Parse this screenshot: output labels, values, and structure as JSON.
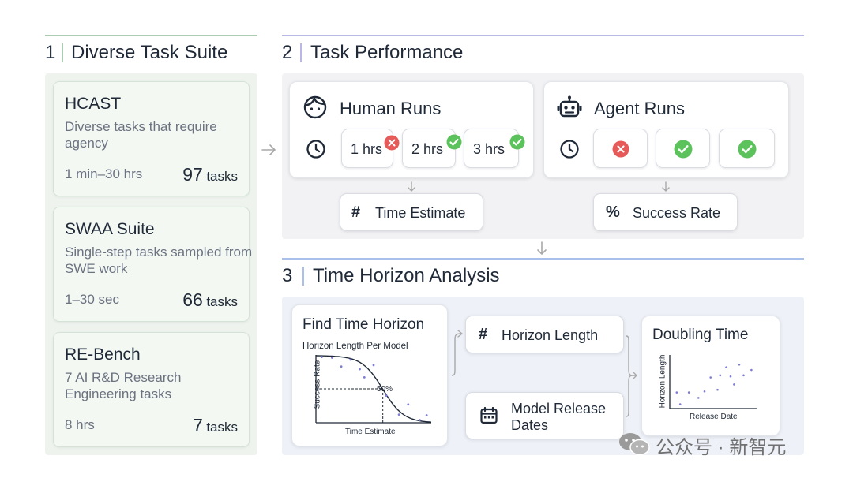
{
  "sections": [
    {
      "number": "1",
      "title": "Diverse Task Suite"
    },
    {
      "number": "2",
      "title": "Task Performance"
    },
    {
      "number": "3",
      "title": "Time Horizon Analysis"
    }
  ],
  "colors": {
    "section1_accent": "#a9ccb3",
    "section2_accent": "#b9b7e6",
    "section3_accent": "#a9c0ec",
    "panel_green": "#eef3ee",
    "panel_gray": "#f2f2f4",
    "panel_blue": "#eef1f8",
    "fail_red": "#e65a5a",
    "success_green": "#5cc35c",
    "scatter_point": "#7c7cd6"
  },
  "task_suites": [
    {
      "name": "HCAST",
      "description": "Diverse tasks that require agency",
      "duration": "1 min–30 hrs",
      "count": "97",
      "unit": "tasks"
    },
    {
      "name": "SWAA Suite",
      "description": "Single-step tasks sampled from SWE work",
      "duration": "1–30 sec",
      "count": "66",
      "unit": "tasks"
    },
    {
      "name": "RE-Bench",
      "description": "7 AI R&D Research Engineering tasks",
      "duration": "8 hrs",
      "count": "7",
      "unit": "tasks"
    }
  ],
  "human_runs": {
    "title": "Human Runs",
    "icon": "person-face-icon",
    "timer_icon": "clock-icon",
    "runs": [
      {
        "label": "1 hrs",
        "status": "fail"
      },
      {
        "label": "2 hrs",
        "status": "success"
      },
      {
        "label": "3 hrs",
        "status": "success"
      }
    ],
    "output": {
      "symbol": "#",
      "label": "Time Estimate"
    }
  },
  "agent_runs": {
    "title": "Agent Runs",
    "icon": "robot-icon",
    "timer_icon": "clock-icon",
    "runs": [
      {
        "status": "fail"
      },
      {
        "status": "success"
      },
      {
        "status": "success"
      }
    ],
    "output": {
      "symbol": "%",
      "label": "Success Rate"
    }
  },
  "analysis": {
    "find_time_horizon": {
      "title": "Find Time Horizon",
      "subtitle": "Horizon Length Per Model",
      "xlabel": "Time Estimate",
      "ylabel": "Success Rate",
      "threshold_label": "50%"
    },
    "horizon_length": {
      "symbol": "#",
      "label": "Horizon Length"
    },
    "model_release_dates": {
      "label_line1": "Model Release",
      "label_line2": "Dates",
      "icon": "calendar-icon"
    },
    "doubling_time": {
      "title": "Doubling Time",
      "xlabel": "Release Date",
      "ylabel": "Horizon Length"
    }
  },
  "chart_data": [
    {
      "type": "scatter",
      "title": "Horizon Length Per Model",
      "xlabel": "Time Estimate",
      "ylabel": "Success Rate",
      "xlim": [
        0,
        1
      ],
      "ylim": [
        0,
        1
      ],
      "points": [
        {
          "x": 0.05,
          "y": 0.97
        },
        {
          "x": 0.14,
          "y": 0.96
        },
        {
          "x": 0.22,
          "y": 0.83
        },
        {
          "x": 0.3,
          "y": 0.93
        },
        {
          "x": 0.38,
          "y": 0.79
        },
        {
          "x": 0.42,
          "y": 0.67
        },
        {
          "x": 0.5,
          "y": 0.85
        },
        {
          "x": 0.61,
          "y": 0.4
        },
        {
          "x": 0.72,
          "y": 0.12
        },
        {
          "x": 0.8,
          "y": 0.27
        },
        {
          "x": 0.9,
          "y": 0.04
        },
        {
          "x": 0.96,
          "y": 0.11
        }
      ],
      "fit_curve": "logistic",
      "threshold": {
        "y": 0.5,
        "x": 0.58,
        "label": "50%"
      }
    },
    {
      "type": "scatter",
      "title": "",
      "xlabel": "Release Date",
      "ylabel": "Horizon Length",
      "xlim": [
        0,
        1
      ],
      "ylim": [
        0,
        1
      ],
      "points": [
        {
          "x": 0.08,
          "y": 0.3
        },
        {
          "x": 0.12,
          "y": 0.08
        },
        {
          "x": 0.22,
          "y": 0.3
        },
        {
          "x": 0.33,
          "y": 0.2
        },
        {
          "x": 0.4,
          "y": 0.32
        },
        {
          "x": 0.47,
          "y": 0.58
        },
        {
          "x": 0.55,
          "y": 0.35
        },
        {
          "x": 0.58,
          "y": 0.62
        },
        {
          "x": 0.65,
          "y": 0.77
        },
        {
          "x": 0.7,
          "y": 0.6
        },
        {
          "x": 0.74,
          "y": 0.45
        },
        {
          "x": 0.8,
          "y": 0.82
        },
        {
          "x": 0.85,
          "y": 0.62
        },
        {
          "x": 0.94,
          "y": 0.72
        }
      ]
    }
  ],
  "watermark": "公众号 · 新智元"
}
